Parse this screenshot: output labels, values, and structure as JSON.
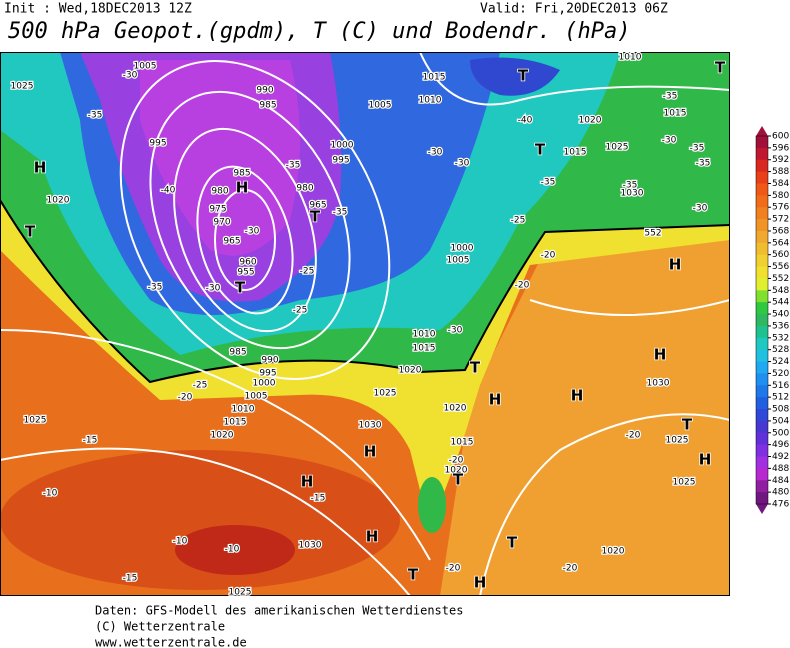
{
  "header": {
    "init": "Init : Wed,18DEC2013 12Z",
    "valid": "Valid: Fri,20DEC2013 06Z",
    "title": "500 hPa Geopot.(gpdm), T (C) und Bodendr. (hPa)"
  },
  "map_labels": [
    "1025",
    "1005",
    "-30",
    "-35",
    "H",
    "995",
    "1020",
    "T",
    "-40",
    "985",
    "H",
    "980",
    "975",
    "970",
    "965",
    "-30",
    "960",
    "955",
    "T",
    "-35",
    "-30",
    "990",
    "985",
    "-35",
    "980",
    "965",
    "T",
    "-35",
    "-25",
    "-25",
    "1005",
    "1000",
    "995",
    "1015",
    "1010",
    "T",
    "-40",
    "T",
    "1015",
    "-30",
    "-30",
    "-35",
    "-25",
    "1000",
    "1005",
    "1010",
    "1015",
    "-30",
    "1020",
    "T",
    "985",
    "990",
    "995",
    "1000",
    "1005",
    "1010",
    "1015",
    "1020",
    "1025",
    "1025",
    "-15",
    "-25",
    "-20",
    "H",
    "1020",
    "1030",
    "H",
    "1015",
    "-20",
    "1020",
    "T",
    "H",
    "-15",
    "-10",
    "-10",
    "-10",
    "1030",
    "H",
    "T",
    "T",
    "-20",
    "H",
    "-20",
    "1020",
    "-15",
    "1025",
    "-20",
    "-20",
    "H",
    "H",
    "1030",
    "H",
    "-20",
    "T",
    "1025",
    "H",
    "1025",
    "1020",
    "1025",
    "-30",
    "-35",
    "-35",
    "-35",
    "1015",
    "1030",
    "-30",
    "-35",
    "552",
    "T",
    "1010"
  ],
  "colorbar": {
    "levels": [
      600,
      596,
      592,
      588,
      584,
      580,
      576,
      572,
      568,
      564,
      560,
      556,
      552,
      548,
      544,
      540,
      536,
      532,
      528,
      524,
      520,
      516,
      512,
      508,
      504,
      500,
      496,
      492,
      488,
      484,
      480,
      476
    ],
    "colors": [
      "#a0103a",
      "#c01830",
      "#d82820",
      "#e84018",
      "#f05818",
      "#f06c18",
      "#f08020",
      "#f09428",
      "#f0a830",
      "#f0bc30",
      "#f0d030",
      "#f0e030",
      "#e0f030",
      "#80e030",
      "#30c840",
      "#30b860",
      "#20c090",
      "#20c8c0",
      "#20c0e0",
      "#20a8f0",
      "#2090f0",
      "#2078e8",
      "#2060e0",
      "#3048d8",
      "#4838d0",
      "#6030d8",
      "#8030e0",
      "#a030e0",
      "#b828d0",
      "#9020a0",
      "#701880"
    ]
  },
  "footer": {
    "source": "Daten: GFS-Modell des amerikanischen Wetterdienstes",
    "copyright": "(C) Wetterzentrale",
    "url": "www.wetterzentrale.de"
  }
}
